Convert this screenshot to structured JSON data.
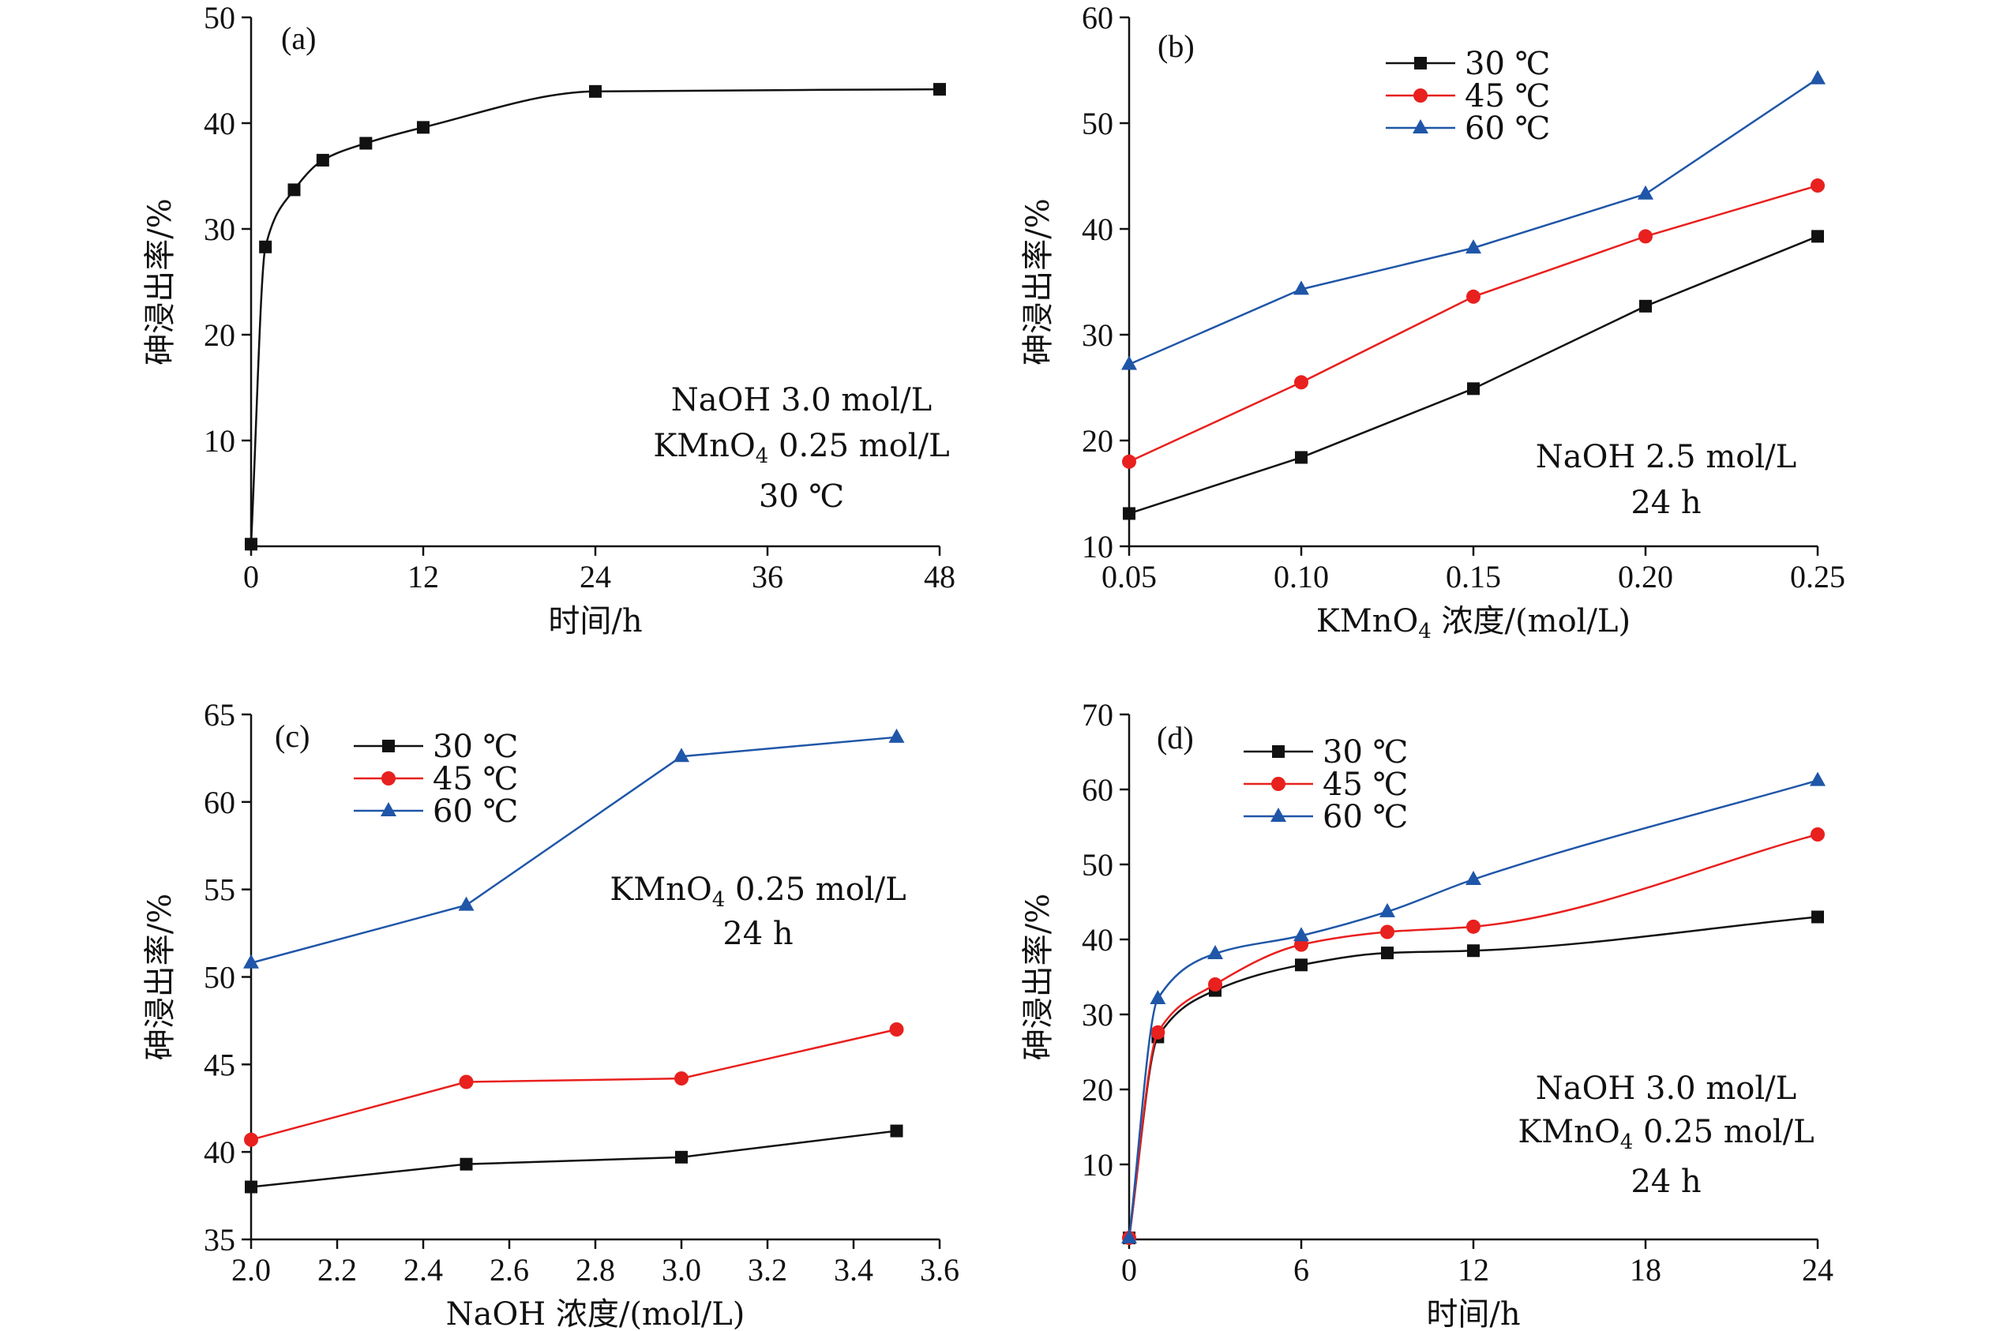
{
  "colors": {
    "s30": "#111111",
    "s45": "#e8201e",
    "s60": "#1f56a8",
    "axis": "#111111"
  },
  "chart_data": [
    {
      "id": "a",
      "type": "line",
      "panel_label": "(a)",
      "xlabel": "时间/h",
      "ylabel": "砷浸出率/%",
      "xlim": [
        0,
        48
      ],
      "ylim": [
        0,
        50
      ],
      "xticks": [
        0,
        12,
        24,
        36,
        48
      ],
      "yticks": [
        10,
        20,
        30,
        40,
        50
      ],
      "xtick_labels": [
        "0",
        "12",
        "24",
        "36",
        "48"
      ],
      "ytick_labels": [
        "10",
        "20",
        "30",
        "40",
        "50"
      ],
      "smooth": true,
      "legend": [],
      "annotation": [
        "NaOH 3.0 mol/L",
        "KMnO4 0.25 mol/L",
        "30 ℃"
      ],
      "series": [
        {
          "name": "",
          "color": "#111111",
          "marker": "square",
          "x": [
            0,
            1,
            3,
            5,
            8,
            12,
            24,
            48
          ],
          "y": [
            0.2,
            28.3,
            33.7,
            36.5,
            38.1,
            39.6,
            43.0,
            43.2
          ]
        }
      ]
    },
    {
      "id": "b",
      "type": "line",
      "panel_label": "(b)",
      "xlabel": "KMnO4 浓度/(mol/L)",
      "ylabel": "砷浸出率/%",
      "xlim": [
        0.05,
        0.25
      ],
      "ylim": [
        10,
        60
      ],
      "xticks": [
        0.05,
        0.1,
        0.15,
        0.2,
        0.25
      ],
      "yticks": [
        10,
        20,
        30,
        40,
        50,
        60
      ],
      "xtick_labels": [
        "0.05",
        "0.10",
        "0.15",
        "0.20",
        "0.25"
      ],
      "ytick_labels": [
        "10",
        "20",
        "30",
        "40",
        "50",
        "60"
      ],
      "smooth": false,
      "legend": [
        "30 ℃",
        "45 ℃",
        "60 ℃"
      ],
      "annotation": [
        "NaOH 2.5 mol/L",
        "24 h"
      ],
      "series": [
        {
          "name": "30 ℃",
          "color": "#111111",
          "marker": "square",
          "x": [
            0.05,
            0.1,
            0.15,
            0.2,
            0.25
          ],
          "y": [
            13.1,
            18.4,
            24.9,
            32.7,
            39.3
          ]
        },
        {
          "name": "45 ℃",
          "color": "#e8201e",
          "marker": "circle",
          "x": [
            0.05,
            0.1,
            0.15,
            0.2,
            0.25
          ],
          "y": [
            18.0,
            25.5,
            33.6,
            39.3,
            44.1
          ]
        },
        {
          "name": "60 ℃",
          "color": "#1f56a8",
          "marker": "triangle",
          "x": [
            0.05,
            0.1,
            0.15,
            0.2,
            0.25
          ],
          "y": [
            27.2,
            34.3,
            38.2,
            43.3,
            54.2
          ]
        }
      ]
    },
    {
      "id": "c",
      "type": "line",
      "panel_label": "(c)",
      "xlabel": "NaOH 浓度/(mol/L)",
      "ylabel": "砷浸出率/%",
      "xlim": [
        2.0,
        3.6
      ],
      "ylim": [
        35,
        65
      ],
      "xticks": [
        2.0,
        2.2,
        2.4,
        2.6,
        2.8,
        3.0,
        3.2,
        3.4,
        3.6
      ],
      "yticks": [
        35,
        40,
        45,
        50,
        55,
        60,
        65
      ],
      "xtick_labels": [
        "2.0",
        "2.2",
        "2.4",
        "2.6",
        "2.8",
        "3.0",
        "3.2",
        "3.4",
        "3.6"
      ],
      "ytick_labels": [
        "35",
        "40",
        "45",
        "50",
        "55",
        "60",
        "65"
      ],
      "smooth": false,
      "legend": [
        "30 ℃",
        "45 ℃",
        "60 ℃"
      ],
      "annotation": [
        "KMnO4 0.25 mol/L",
        "24 h"
      ],
      "series": [
        {
          "name": "30 ℃",
          "color": "#111111",
          "marker": "square",
          "x": [
            2.0,
            2.5,
            3.0,
            3.5
          ],
          "y": [
            38.0,
            39.3,
            39.7,
            41.2
          ]
        },
        {
          "name": "45 ℃",
          "color": "#e8201e",
          "marker": "circle",
          "x": [
            2.0,
            2.5,
            3.0,
            3.5
          ],
          "y": [
            40.7,
            44.0,
            44.2,
            47.0
          ]
        },
        {
          "name": "60 ℃",
          "color": "#1f56a8",
          "marker": "triangle",
          "x": [
            2.0,
            2.5,
            3.0,
            3.5
          ],
          "y": [
            50.8,
            54.1,
            62.6,
            63.7
          ]
        }
      ]
    },
    {
      "id": "d",
      "type": "line",
      "panel_label": "(d)",
      "xlabel": "时间/h",
      "ylabel": "砷浸出率/%",
      "xlim": [
        0,
        24
      ],
      "ylim": [
        0,
        70
      ],
      "xticks": [
        0,
        6,
        12,
        18,
        24
      ],
      "yticks": [
        10,
        20,
        30,
        40,
        50,
        60,
        70
      ],
      "xtick_labels": [
        "0",
        "6",
        "12",
        "18",
        "24"
      ],
      "ytick_labels": [
        "10",
        "20",
        "30",
        "40",
        "50",
        "60",
        "70"
      ],
      "smooth": true,
      "legend": [
        "30 ℃",
        "45 ℃",
        "60 ℃"
      ],
      "annotation": [
        "NaOH 3.0 mol/L",
        "KMnO4 0.25 mol/L",
        "24 h"
      ],
      "series": [
        {
          "name": "30 ℃",
          "color": "#111111",
          "marker": "square",
          "x": [
            0,
            1,
            3,
            6,
            9,
            12,
            24
          ],
          "y": [
            0.2,
            27.0,
            33.2,
            36.6,
            38.2,
            38.5,
            43.0
          ]
        },
        {
          "name": "45 ℃",
          "color": "#e8201e",
          "marker": "circle",
          "x": [
            0,
            1,
            3,
            6,
            9,
            12,
            24
          ],
          "y": [
            0.2,
            27.6,
            34.0,
            39.3,
            41.0,
            41.7,
            54.0
          ]
        },
        {
          "name": "60 ℃",
          "color": "#1f56a8",
          "marker": "triangle",
          "x": [
            0,
            1,
            3,
            6,
            9,
            12,
            24
          ],
          "y": [
            0.2,
            32.1,
            38.1,
            40.5,
            43.7,
            48.0,
            61.2
          ]
        }
      ]
    }
  ]
}
